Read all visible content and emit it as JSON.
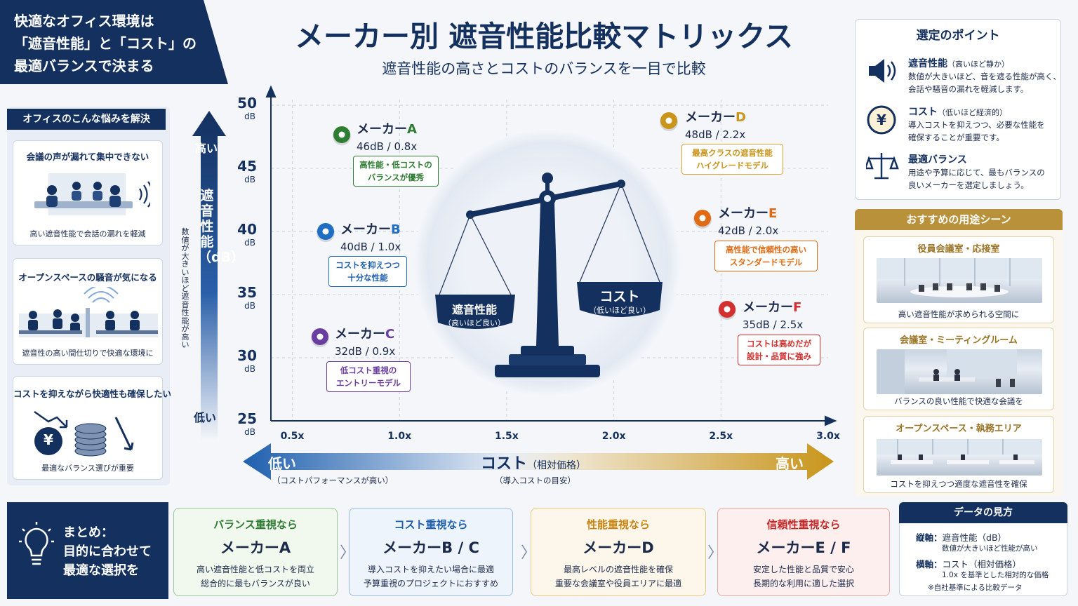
{
  "banner": {
    "line1": "快適なオフィス環境は",
    "line2": "「遮音性能」と「コスト」の",
    "line3": "最適バランスで決まる"
  },
  "title": "メーカー別 遮音性能比較マトリックス",
  "subtitle": "遮音性能の高さとコストのバランスを一目で比較",
  "left_panel": {
    "heading": "オフィスのこんな悩みを解決",
    "cards": [
      {
        "title": "会議の声が漏れて集中できない",
        "caption": "高い遮音性能で会話の漏れを軽減"
      },
      {
        "title": "オープンスペースの騒音が気になる",
        "caption": "遮音性の高い間仕切りで快適な環境に"
      },
      {
        "title": "コストを抑えながら快適性も確保したい",
        "caption": "最適なバランス選びが重要",
        "icon_symbol": "¥"
      }
    ]
  },
  "y_axis": {
    "high": "高い",
    "title": "遮音性能（dB）",
    "low": "低い",
    "note": "数値が大きいほど遮音性能が高い"
  },
  "x_axis": {
    "low": "低い",
    "low_sub": "（コストパフォーマンスが高い）",
    "title": "コスト",
    "title_unit": "（相対価格）",
    "title_sub": "（導入コストの目安）",
    "high": "高い"
  },
  "scale_labels": {
    "left": "遮音性能",
    "left_sub": "（高いほど良い）",
    "right": "コスト",
    "right_sub": "（低いほど良い）"
  },
  "chart_data": {
    "type": "scatter",
    "xlabel": "コスト（相対価格）",
    "ylabel": "遮音性能（dB）",
    "xlim": [
      0.4,
      3.0
    ],
    "ylim": [
      25,
      50
    ],
    "x_ticks": [
      "0.5x",
      "1.0x",
      "1.5x",
      "2.0x",
      "2.5x",
      "3.0x"
    ],
    "y_ticks": [
      {
        "v": "50",
        "u": "dB"
      },
      {
        "v": "45",
        "u": "dB"
      },
      {
        "v": "40",
        "u": "dB"
      },
      {
        "v": "35",
        "u": "dB"
      },
      {
        "v": "30",
        "u": "dB"
      },
      {
        "v": "25",
        "u": "dB"
      }
    ],
    "points": [
      {
        "prefix": "メーカー",
        "letter": "A",
        "value_text": "46dB / 0.8x",
        "x": 0.8,
        "y": 46,
        "color": "#2e7d32",
        "tag": [
          "高性能・低コストの",
          "バランスが優秀"
        ]
      },
      {
        "prefix": "メーカー",
        "letter": "B",
        "value_text": "40dB / 1.0x",
        "x": 1.0,
        "y": 40,
        "color": "#1e6fc4",
        "tag": [
          "コストを抑えつつ",
          "十分な性能"
        ]
      },
      {
        "prefix": "メーカー",
        "letter": "C",
        "value_text": "32dB / 0.9x",
        "x": 0.9,
        "y": 32,
        "color": "#6a3ea1",
        "tag": [
          "低コスト重視の",
          "エントリーモデル"
        ]
      },
      {
        "prefix": "メーカー",
        "letter": "D",
        "value_text": "48dB / 2.2x",
        "x": 2.2,
        "y": 48,
        "color": "#c9951a",
        "tag": [
          "最高クラスの遮音性能",
          "ハイグレードモデル"
        ]
      },
      {
        "prefix": "メーカー",
        "letter": "E",
        "value_text": "42dB / 2.0x",
        "x": 2.0,
        "y": 42,
        "color": "#e06b14",
        "tag": [
          "高性能で信頼性の高い",
          "スタンダードモデル"
        ]
      },
      {
        "prefix": "メーカー",
        "letter": "F",
        "value_text": "35dB / 2.5x",
        "x": 2.5,
        "y": 35,
        "color": "#d32f2f",
        "tag": [
          "コストは高めだが",
          "設計・品質に強み"
        ]
      }
    ]
  },
  "points_panel": {
    "title": "選定のポイント",
    "items": [
      {
        "head": "遮音性能",
        "sub": "（高いほど静か）",
        "desc1": "数値が大きいほど、音を遮る性能が高く、",
        "desc2": "会話や騒音の漏れを軽減します。",
        "icon": "speaker-icon"
      },
      {
        "head": "コスト",
        "sub": "（低いほど経済的）",
        "desc1": "導入コストを抑えつつ、必要な性能を",
        "desc2": "確保することが重要です。",
        "icon": "yen-icon",
        "symbol": "¥"
      },
      {
        "head": "最適バランス",
        "sub": "",
        "desc1": "用途や予算に応じて、最もバランスの",
        "desc2": "良いメーカーを選定しましょう。",
        "icon": "scale-icon"
      }
    ]
  },
  "scenes": {
    "title": "おすすめの用途シーン",
    "items": [
      {
        "title": "役員会議室・応接室",
        "caption": "高い遮音性能が求められる空間に"
      },
      {
        "title": "会議室・ミーティングルーム",
        "caption": "バランスの良い性能で快適な会議を"
      },
      {
        "title": "オープンスペース・執務エリア",
        "caption": "コストを抑えつつ適度な遮音性を確保"
      }
    ]
  },
  "summary": {
    "line1": "まとめ：",
    "line2": "目的に合わせて",
    "line3": "最適な選択を"
  },
  "recommendations": [
    {
      "head": "バランス重視なら",
      "maker": "メーカーA",
      "d1": "高い遮音性能と低コストを両立",
      "d2": "総合的に最もバランスが良い",
      "color": "#2e7d32",
      "bg": "#f1f8ee",
      "border": "#9cc79a"
    },
    {
      "head": "コスト重視なら",
      "maker": "メーカーB / C",
      "d1": "導入コストを抑えたい場合に最適",
      "d2": "予算重視のプロジェクトにおすすめ",
      "color": "#1e5fae",
      "bg": "#eef4fb",
      "border": "#9dbbe0"
    },
    {
      "head": "性能重視なら",
      "maker": "メーカーD",
      "d1": "最高レベルの遮音性能を確保",
      "d2": "重要な会議室や役員エリアに最適",
      "color": "#c98614",
      "bg": "#fdf6ea",
      "border": "#e6c888"
    },
    {
      "head": "信頼性重視なら",
      "maker": "メーカーE / F",
      "d1": "安定した性能と品質で安心",
      "d2": "長期的な利用に適した選択",
      "color": "#c62828",
      "bg": "#fcefee",
      "border": "#e6a9a6"
    }
  ],
  "data_guide": {
    "title": "データの見方",
    "v_label": "縦軸：",
    "v_value": "遮音性能（dB）",
    "v_note": "数値が大きいほど性能が高い",
    "h_label": "横軸：",
    "h_value": "コスト（相対価格）",
    "h_note": "1.0x を基準とした相対的な価格",
    "footnote": "※自社基準による比較データ"
  }
}
